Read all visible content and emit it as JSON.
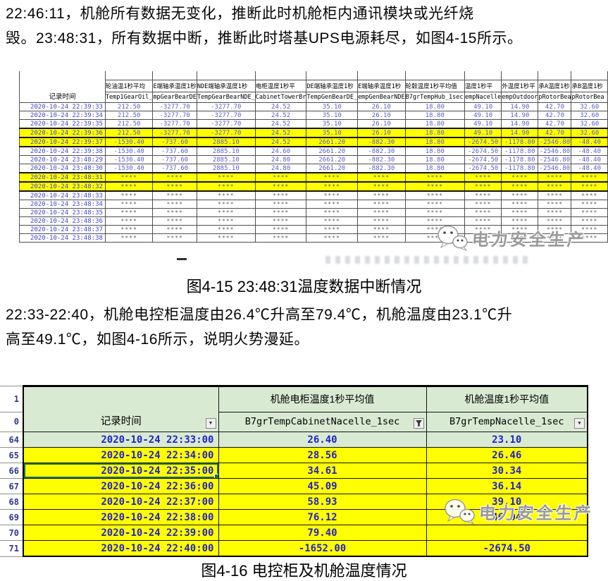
{
  "watermark": {
    "text": "电力安全生产"
  },
  "paragraphs": {
    "p1_line1": "22:46:11，机舱所有数据无变化，推断此时机舱柜内通讯模块或光纤烧",
    "p1_line2": "毁。23:48:31，所有数据中断，推断此时塔基UPS电源耗尽，如图4-15所示。",
    "p2_line1": "22:33-22:40，机舱电控柜温度由26.4℃升高至79.4℃，机舱温度由23.1℃升",
    "p2_line2": "高至49.1℃，如图4-16所示，说明火势漫延。"
  },
  "figure15": {
    "caption": "图4-15 23:48:31温度数据中断情况",
    "table": {
      "time_header": "记录时间",
      "columns": [
        {
          "cn": "轮油温1秒平均",
          "en": "Temp1GearOil_"
        },
        {
          "cn": "E端轴承温度1秒",
          "en": "mpGearBearDE"
        },
        {
          "cn": "NDE端轴承温度1秒",
          "en": "TempGearBearNDE_"
        },
        {
          "cn": "电柜温度1秒平",
          "en": "CabinetTowerBr"
        },
        {
          "cn": "DE端轴承温度1秒",
          "en": "TempGenBearDE_"
        },
        {
          "cn": "E端轴承温度1秒",
          "en": "empGenBearNDE"
        },
        {
          "cn": "轮毂温度1秒平均值",
          "en": "B7grTempHub_1sec"
        },
        {
          "cn": "温度1秒平",
          "en": "empNacelle"
        },
        {
          "cn": "外温度1秒平",
          "en": "empOutdoor"
        },
        {
          "cn": "承A温度1秒",
          "en": "pRotorBea"
        },
        {
          "cn": "承B温度1秒",
          "en": "pRotorBea"
        }
      ],
      "rows": [
        {
          "time": "2020-10-24 22:39:33",
          "highlight": false,
          "values": [
            "212.50",
            "-3277.70",
            "-3277.70",
            "24.52",
            "35.10",
            "26.10",
            "18.80",
            "49.10",
            "14.90",
            "42.70",
            "32.60"
          ]
        },
        {
          "time": "2020-10-24 22:39:34",
          "highlight": false,
          "values": [
            "212.50",
            "-3277.70",
            "-3277.70",
            "24.52",
            "35.10",
            "26.10",
            "18.80",
            "49.10",
            "14.90",
            "42.70",
            "32.60"
          ]
        },
        {
          "time": "2020-10-24 22:39:35",
          "highlight": false,
          "values": [
            "212.50",
            "-3277.70",
            "-3277.70",
            "24.52",
            "35.10",
            "26.10",
            "18.80",
            "49.10",
            "14.90",
            "42.70",
            "32.60"
          ]
        },
        {
          "time": "2020-10-24 22:39:36",
          "highlight": true,
          "values": [
            "212.50",
            "-3277.70",
            "-3277.70",
            "24.52",
            "35.10",
            "26.10",
            "18.80",
            "49.10",
            "14.90",
            "42.70",
            "32.60"
          ]
        },
        {
          "time": "2020-10-24 22:39:37",
          "highlight": true,
          "values": [
            "-1530.40",
            "-737.60",
            "2885.10",
            "24.52",
            "2661.20",
            "-882.30",
            "18.80",
            "-2674.50",
            "-1178.80",
            "-2546.80",
            "-48.40"
          ]
        },
        {
          "time": "2020-10-24 22:39:38",
          "highlight": false,
          "values": [
            "-1530.40",
            "-737.60",
            "2885.10",
            "24.60",
            "2661.20",
            "-882.30",
            "18.80",
            "-2674.50",
            "-1178.80",
            "-2546.80",
            "-48.40"
          ]
        },
        {
          "time": "2020-10-24 23:48:29",
          "highlight": false,
          "values": [
            "-1530.40",
            "-737.60",
            "2885.10",
            "24.80",
            "2661.20",
            "-882.30",
            "18.80",
            "-2674.50",
            "-1178.80",
            "-2546.80",
            "-48.40"
          ]
        },
        {
          "time": "2020-10-24 23:48:30",
          "highlight": false,
          "values": [
            "-1530.40",
            "-737.60",
            "2885.10",
            "24.80",
            "2661.20",
            "-882.30",
            "18.80",
            "-2674.50",
            "-1178.80",
            "-2546.80",
            "-48.40"
          ]
        },
        {
          "time": "2020-10-24 23:48:31",
          "highlight": true,
          "values": [
            "****",
            "****",
            "****",
            "****",
            "****",
            "****",
            "****",
            "****",
            "****",
            "****",
            "****"
          ]
        },
        {
          "time": "2020-10-24 23:48:32",
          "highlight": true,
          "values": [
            "****",
            "****",
            "****",
            "****",
            "****",
            "****",
            "****",
            "****",
            "****",
            "****",
            "****"
          ]
        },
        {
          "time": "2020-10-24 23:48:33",
          "highlight": false,
          "values": [
            "****",
            "****",
            "****",
            "****",
            "****",
            "****",
            "****",
            "****",
            "****",
            "****",
            "****"
          ]
        },
        {
          "time": "2020-10-24 23:48:34",
          "highlight": false,
          "values": [
            "****",
            "****",
            "****",
            "****",
            "****",
            "****",
            "****",
            "****",
            "****",
            "****",
            "****"
          ]
        },
        {
          "time": "2020-10-24 23:48:35",
          "highlight": false,
          "values": [
            "****",
            "****",
            "****",
            "****",
            "****",
            "****",
            "****",
            "****",
            "****",
            "****",
            "****"
          ]
        },
        {
          "time": "2020-10-24 23:48:36",
          "highlight": false,
          "values": [
            "****",
            "****",
            "****",
            "****",
            "****",
            "****",
            "****",
            "****",
            "****",
            "****",
            "****"
          ]
        },
        {
          "time": "2020-10-24 23:48:37",
          "highlight": false,
          "values": [
            "****",
            "****",
            "****",
            "****",
            "****",
            "****",
            "****",
            "****",
            "****",
            "****",
            "****"
          ]
        },
        {
          "time": "2020-10-24 23:48:38",
          "highlight": false,
          "values": [
            "****",
            "****",
            "****",
            "****",
            "****",
            "****",
            "****",
            "****",
            "****",
            "****",
            "****"
          ]
        }
      ]
    }
  },
  "figure16": {
    "caption": "图4-16 电控柜及机舱温度情况",
    "table": {
      "corner_labels": [
        "1",
        "0"
      ],
      "time_header": "记录时间",
      "groups": [
        {
          "cn": "机舱电柜温度1秒平均值",
          "field": "B7grTempCabinetNacelle_1sec",
          "filter": "funnel"
        },
        {
          "cn": "机舱温度1秒平均值",
          "field": "B7grTempNacelle_1sec",
          "filter": "arrow"
        }
      ],
      "rows": [
        {
          "num": "64",
          "time": "2020-10-24 22:33:00",
          "cabinet": "26.40",
          "nacelle": "23.10",
          "style": "green",
          "selected": false
        },
        {
          "num": "65",
          "time": "2020-10-24 22:34:00",
          "cabinet": "28.56",
          "nacelle": "26.46",
          "style": "yellow",
          "selected": false
        },
        {
          "num": "66",
          "time": "2020-10-24 22:35:00",
          "cabinet": "34.61",
          "nacelle": "30.34",
          "style": "yellow",
          "selected": true
        },
        {
          "num": "67",
          "time": "2020-10-24 22:36:00",
          "cabinet": "45.09",
          "nacelle": "36.14",
          "style": "yellow",
          "selected": false
        },
        {
          "num": "68",
          "time": "2020-10-24 22:37:00",
          "cabinet": "58.93",
          "nacelle": "39.10",
          "style": "yellow",
          "selected": false
        },
        {
          "num": "69",
          "time": "2020-10-24 22:38:00",
          "cabinet": "76.12",
          "nacelle": "46.94",
          "style": "yellow",
          "selected": false
        },
        {
          "num": "70",
          "time": "2020-10-24 22:39:00",
          "cabinet": "79.40",
          "nacelle": "",
          "style": "yellow",
          "selected": false
        },
        {
          "num": "71",
          "time": "2020-10-24 22:40:00",
          "cabinet": "-1652.00",
          "nacelle": "-2674.50",
          "style": "yellow",
          "selected": false
        }
      ]
    }
  }
}
